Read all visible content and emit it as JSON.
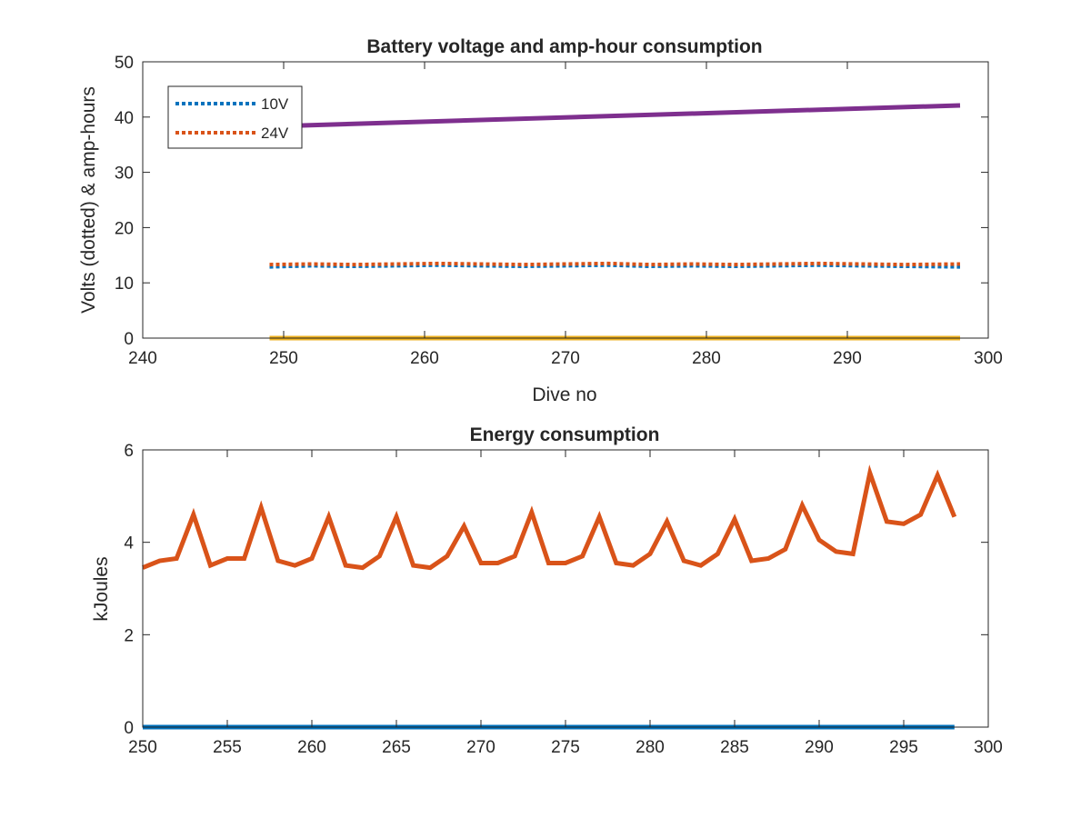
{
  "colors": {
    "blue": "#0072BD",
    "orange": "#D95319",
    "yellow": "#EDB120",
    "purple": "#7E2F8E",
    "axis": "#262626"
  },
  "chart_data": [
    {
      "type": "line",
      "title": "Battery voltage and amp-hour consumption",
      "xlabel": "Dive no",
      "ylabel": "Volts (dotted) & amp-hours",
      "xlim": [
        240,
        300
      ],
      "ylim": [
        0,
        50
      ],
      "xticks": [
        240,
        250,
        260,
        270,
        280,
        290,
        300
      ],
      "yticks": [
        0,
        10,
        20,
        30,
        40,
        50
      ],
      "grid": false,
      "legend_position": "top-left",
      "series": [
        {
          "name": "10V",
          "style": "dotted",
          "color": "#0072BD",
          "x": [
            249,
            252,
            255,
            258,
            261,
            264,
            267,
            270,
            273,
            276,
            279,
            282,
            285,
            288,
            291,
            294,
            298
          ],
          "y": [
            12.9,
            13.1,
            13.0,
            13.1,
            13.2,
            13.1,
            13.0,
            13.1,
            13.2,
            13.0,
            13.1,
            13.0,
            13.1,
            13.2,
            13.1,
            13.0,
            12.9
          ]
        },
        {
          "name": "24V",
          "style": "dotted",
          "color": "#D95319",
          "x": [
            249,
            252,
            255,
            258,
            261,
            264,
            267,
            270,
            273,
            276,
            279,
            282,
            285,
            288,
            291,
            294,
            298
          ],
          "y": [
            13.3,
            13.4,
            13.3,
            13.4,
            13.5,
            13.4,
            13.3,
            13.4,
            13.5,
            13.3,
            13.4,
            13.3,
            13.4,
            13.5,
            13.4,
            13.3,
            13.4
          ]
        },
        {
          "style": "solid",
          "color": "#EDB120",
          "x": [
            249,
            298
          ],
          "y": [
            0,
            0
          ]
        },
        {
          "style": "solid",
          "color": "#7E2F8E",
          "x": [
            249,
            298
          ],
          "y": [
            38.3,
            42.1
          ]
        }
      ]
    },
    {
      "type": "line",
      "title": "Energy consumption",
      "xlabel": "",
      "ylabel": "kJoules",
      "xlim": [
        250,
        300
      ],
      "ylim": [
        0,
        6
      ],
      "xticks": [
        250,
        255,
        260,
        265,
        270,
        275,
        280,
        285,
        290,
        295,
        300
      ],
      "yticks": [
        0,
        2,
        4,
        6
      ],
      "grid": false,
      "series": [
        {
          "style": "solid",
          "color": "#D95319",
          "x": [
            250,
            251,
            252,
            253,
            254,
            255,
            256,
            257,
            258,
            259,
            260,
            261,
            262,
            263,
            264,
            265,
            266,
            267,
            268,
            269,
            270,
            271,
            272,
            273,
            274,
            275,
            276,
            277,
            278,
            279,
            280,
            281,
            282,
            283,
            284,
            285,
            286,
            287,
            288,
            289,
            290,
            291,
            292,
            293,
            294,
            295,
            296,
            297,
            298
          ],
          "y": [
            3.45,
            3.6,
            3.65,
            4.6,
            3.5,
            3.65,
            3.65,
            4.75,
            3.6,
            3.5,
            3.65,
            4.55,
            3.5,
            3.45,
            3.7,
            4.55,
            3.5,
            3.45,
            3.7,
            4.35,
            3.55,
            3.55,
            3.7,
            4.65,
            3.55,
            3.55,
            3.7,
            4.55,
            3.55,
            3.5,
            3.75,
            4.45,
            3.6,
            3.5,
            3.75,
            4.5,
            3.6,
            3.65,
            3.85,
            4.8,
            4.05,
            3.8,
            3.75,
            5.5,
            4.45,
            4.4,
            4.6,
            5.45,
            4.55
          ]
        },
        {
          "style": "solid",
          "color": "#0072BD",
          "x": [
            250,
            298
          ],
          "y": [
            0,
            0
          ]
        }
      ]
    }
  ]
}
